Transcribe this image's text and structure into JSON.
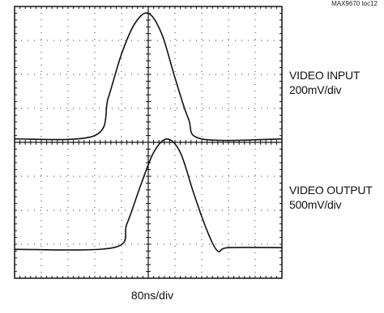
{
  "figure_id": "MAX9670 toc12",
  "time_scale": "80ns/div",
  "colors": {
    "trace": "#111111",
    "frame": "#111111",
    "grid": "#333333"
  },
  "chart_data": {
    "type": "line",
    "grid": "dotted",
    "x_divisions": 10,
    "y_divisions": 8,
    "x_unit": "div",
    "y_unit": "div",
    "xlim": [
      0,
      10
    ],
    "ylim": [
      0,
      8
    ],
    "series": [
      {
        "name": "VIDEO INPUT",
        "scale": "200mV/div",
        "x": [
          0,
          3.0,
          3.5,
          4.0,
          4.5,
          5.0,
          5.5,
          6.0,
          6.5,
          7.0,
          10
        ],
        "y": [
          4.1,
          4.2,
          5.3,
          6.6,
          7.5,
          7.8,
          7.2,
          5.9,
          4.7,
          4.1,
          4.1
        ]
      },
      {
        "name": "VIDEO OUTPUT",
        "scale": "500mV/div",
        "x": [
          0,
          3.7,
          4.2,
          4.7,
          5.2,
          5.7,
          6.2,
          6.7,
          7.2,
          7.6,
          8.0,
          10
        ],
        "y": [
          0.85,
          0.9,
          1.6,
          2.7,
          3.7,
          4.1,
          3.7,
          2.5,
          1.4,
          0.8,
          0.9,
          0.9
        ]
      }
    ]
  },
  "labels": {
    "input": {
      "name": "VIDEO INPUT",
      "scale": "200mV/div"
    },
    "output": {
      "name": "VIDEO OUTPUT",
      "scale": "500mV/div"
    }
  }
}
